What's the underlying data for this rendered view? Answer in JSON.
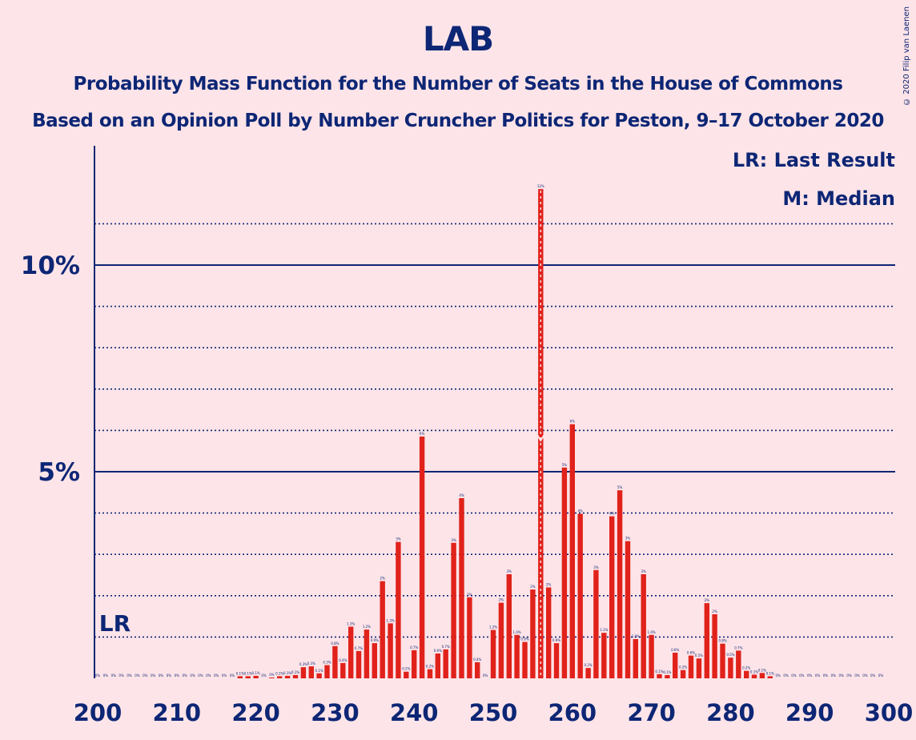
{
  "header": {
    "title": "LAB",
    "subtitle1": "Probability Mass Function for the Number of Seats in the House of Commons",
    "subtitle2": "Based on an Opinion Poll by Number Cruncher Politics for Peston, 9–17 October 2020",
    "copyright": "© 2020 Filip van Laenen"
  },
  "legend": {
    "last_result": "LR: Last Result",
    "median": "M: Median"
  },
  "markers": {
    "lr_label": "LR",
    "lr_seat": 202,
    "median_seat": 256
  },
  "colors": {
    "background": "#fde4e8",
    "bar": "#e0221b",
    "text": "#0d2675"
  },
  "chart_data": {
    "type": "bar",
    "title": "LAB",
    "xlabel": "",
    "ylabel": "",
    "xlim": [
      200,
      300
    ],
    "ylim": [
      0,
      12.8
    ],
    "x_ticks": [
      "200",
      "210",
      "220",
      "230",
      "240",
      "250",
      "260",
      "270",
      "280",
      "290",
      "300"
    ],
    "y_ticks": [
      {
        "value": 5,
        "label": "5%"
      },
      {
        "value": 10,
        "label": "10%"
      }
    ],
    "grid_minor_step": 1,
    "grid": true,
    "x": [
      200,
      201,
      202,
      203,
      204,
      205,
      206,
      207,
      208,
      209,
      210,
      211,
      212,
      213,
      214,
      215,
      216,
      217,
      218,
      219,
      220,
      221,
      222,
      223,
      224,
      225,
      226,
      227,
      228,
      229,
      230,
      231,
      232,
      233,
      234,
      235,
      236,
      237,
      238,
      239,
      240,
      241,
      242,
      243,
      244,
      245,
      246,
      247,
      248,
      249,
      250,
      251,
      252,
      253,
      254,
      255,
      256,
      257,
      258,
      259,
      260,
      261,
      262,
      263,
      264,
      265,
      266,
      267,
      268,
      269,
      270,
      271,
      272,
      273,
      274,
      275,
      276,
      277,
      278,
      279,
      280,
      281,
      282,
      283,
      284,
      285,
      286,
      287,
      288,
      289,
      290,
      291,
      292,
      293,
      294,
      295,
      296,
      297,
      298,
      299
    ],
    "values": [
      0,
      0,
      0,
      0,
      0,
      0,
      0,
      0,
      0,
      0,
      0,
      0,
      0,
      0,
      0,
      0,
      0,
      0,
      0.05,
      0.05,
      0.06,
      0,
      0.02,
      0.05,
      0.06,
      0.08,
      0.27,
      0.29,
      0.12,
      0.32,
      0.78,
      0.37,
      1.25,
      0.66,
      1.18,
      0.85,
      2.35,
      1.33,
      3.3,
      0.16,
      0.68,
      5.85,
      0.22,
      0.6,
      0.7,
      3.28,
      4.36,
      1.96,
      0.39,
      0,
      1.17,
      1.83,
      2.52,
      1.05,
      0.88,
      2.15,
      11.84,
      2.2,
      0.85,
      5.1,
      6.15,
      3.98,
      0.25,
      2.62,
      1.1,
      3.92,
      4.55,
      3.32,
      0.95,
      2.52,
      1.05,
      0.1,
      0.08,
      0.62,
      0.2,
      0.55,
      0.48,
      1.82,
      1.55,
      0.84,
      0.5,
      0.67,
      0.18,
      0.09,
      0.13,
      0.05,
      0,
      0,
      0,
      0,
      0,
      0,
      0,
      0,
      0,
      0,
      0,
      0,
      0,
      0
    ],
    "labels": [
      "0%",
      "0%",
      "0%",
      "0%",
      "0%",
      "0%",
      "0%",
      "0%",
      "0%",
      "0%",
      "0%",
      "0%",
      "0%",
      "0%",
      "0%",
      "0%",
      "0%",
      "0%",
      "0.1%",
      "0.1%",
      "0.1%",
      "0%",
      "0%",
      "0.1%",
      "0.1%",
      "0.1%",
      "0.3%",
      "0.3%",
      "0.1%",
      "0.3%",
      "0.8%",
      "0.4%",
      "1.3%",
      "0.7%",
      "1.2%",
      "0.9%",
      "2%",
      "1.3%",
      "3%",
      "0.2%",
      "0.7%",
      "6%",
      "0.2%",
      "0.6%",
      "0.7%",
      "3%",
      "4%",
      "2%",
      "0.4%",
      "0%",
      "1.2%",
      "2%",
      "3%",
      "1.0%",
      "0.9%",
      "2%",
      "12%",
      "2%",
      "0.9%",
      "5%",
      "6%",
      "4%",
      "0.2%",
      "3%",
      "1.1%",
      "4%",
      "5%",
      "3%",
      "1.0%",
      "3%",
      "1.0%",
      "0.1%",
      "0.1%",
      "0.6%",
      "0.2%",
      "0.6%",
      "0.5%",
      "2%",
      "2%",
      "0.8%",
      "0.5%",
      "0.7%",
      "0.2%",
      "0.1%",
      "0.1%",
      "0.1%",
      "0%",
      "0%",
      "0%",
      "0%",
      "0%",
      "0%",
      "0%",
      "0%",
      "0%",
      "0%",
      "0%",
      "0%",
      "0%",
      "0%"
    ]
  }
}
